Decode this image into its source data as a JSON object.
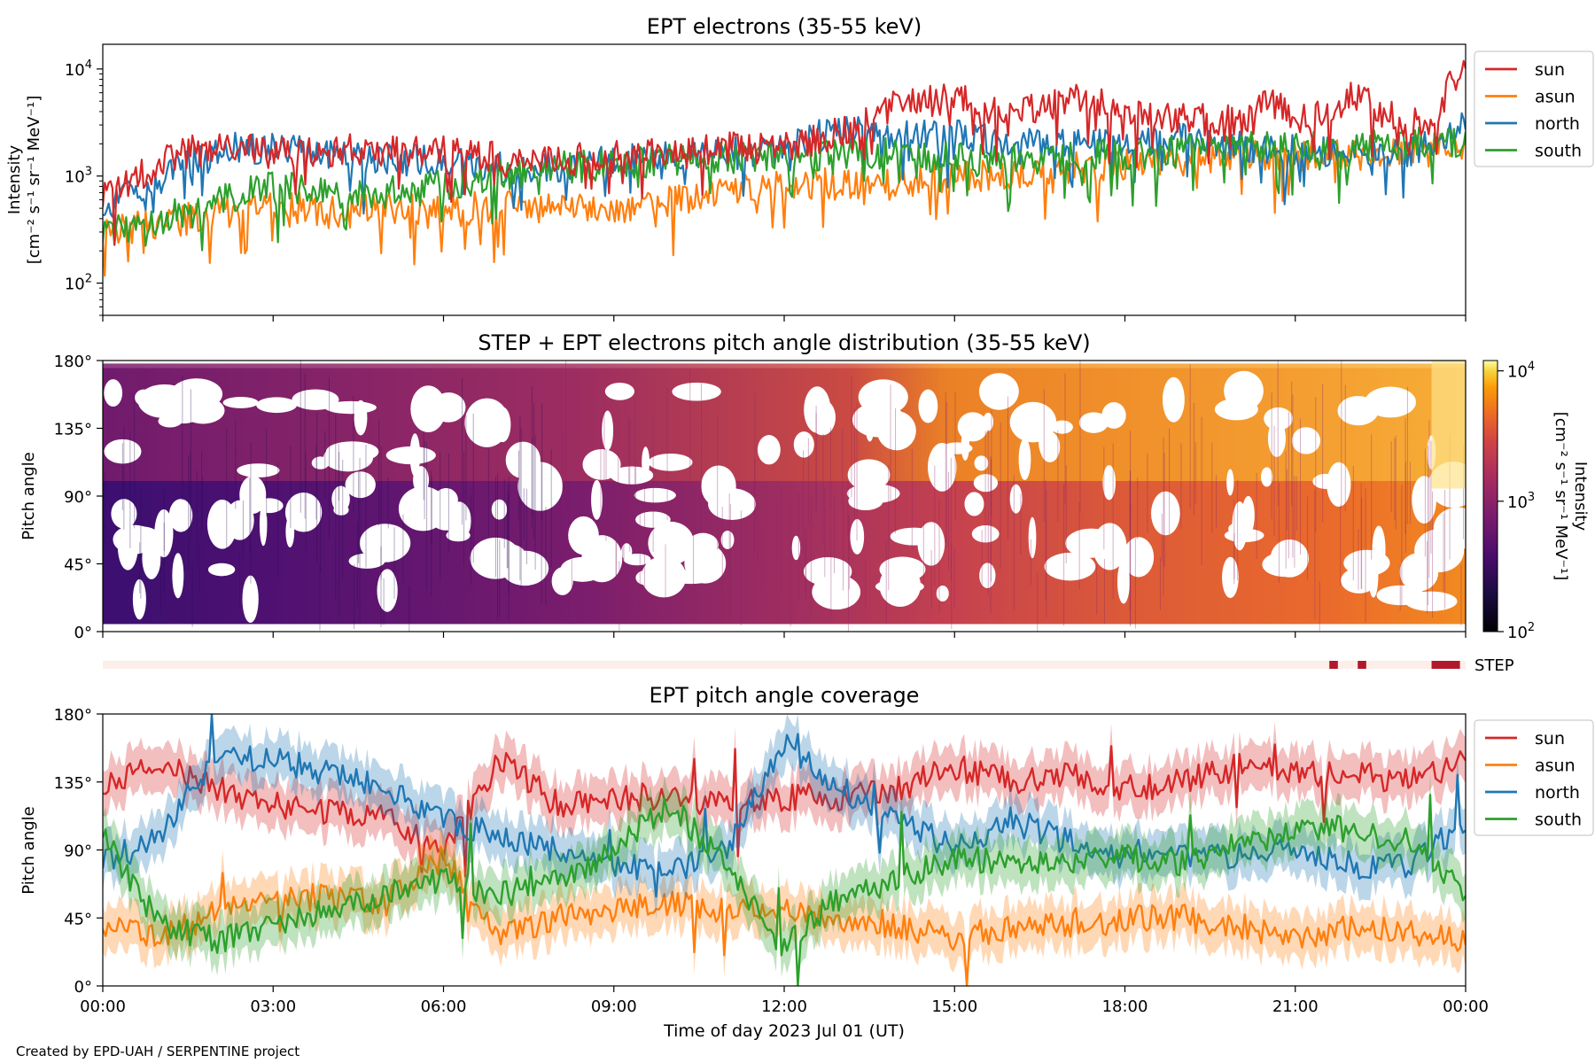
{
  "footer_text": "Created by EPD-UAH / SERPENTINE project",
  "chart_data": [
    {
      "type": "line",
      "title": "EPT electrons (35-55 keV)",
      "ylabel_line1": "Intensity",
      "ylabel_line2": "[cm⁻² s⁻¹ sr⁻¹ MeV⁻¹]",
      "yscale": "log",
      "ylim": [
        50,
        17000
      ],
      "yticks": [
        {
          "v": 100,
          "base": "10",
          "exp": "2"
        },
        {
          "v": 1000,
          "base": "10",
          "exp": "3"
        },
        {
          "v": 10000,
          "base": "10",
          "exp": "4"
        }
      ],
      "xlim_hours": [
        0,
        24
      ],
      "legend_position": "outside-right-top",
      "series": [
        {
          "name": "sun",
          "color": "#d62728",
          "x": [
            0,
            0.5,
            1,
            1.5,
            2,
            3,
            4,
            5,
            6,
            7,
            8,
            9,
            10,
            11,
            12,
            12.5,
            13,
            13.5,
            14,
            14.5,
            15,
            15.5,
            16,
            16.5,
            17,
            17.5,
            18,
            19,
            20,
            20.5,
            21,
            21.5,
            22,
            22.5,
            23,
            23.5,
            23.8,
            24
          ],
          "values": [
            600,
            900,
            1300,
            1700,
            1800,
            1800,
            1700,
            1800,
            1700,
            1500,
            1400,
            1500,
            1600,
            1800,
            1900,
            2100,
            2600,
            3500,
            4600,
            5000,
            5500,
            4000,
            3800,
            4500,
            5200,
            4800,
            4200,
            3500,
            3200,
            4800,
            3500,
            4200,
            6000,
            4000,
            3200,
            3000,
            8500,
            9500
          ]
        },
        {
          "name": "asun",
          "color": "#ff7f0e",
          "x": [
            0,
            1,
            2,
            3,
            4,
            5,
            6,
            7,
            8,
            9,
            10,
            11,
            12,
            13,
            14,
            15,
            16,
            17,
            18,
            19,
            20,
            21,
            22,
            23,
            24
          ],
          "values": [
            300,
            350,
            450,
            550,
            450,
            500,
            450,
            550,
            500,
            500,
            600,
            700,
            800,
            850,
            900,
            1000,
            1050,
            1200,
            1300,
            1400,
            1500,
            1550,
            1600,
            1700,
            1800
          ]
        },
        {
          "name": "north",
          "color": "#1f77b4",
          "x": [
            0,
            1,
            2,
            3,
            4,
            5,
            6,
            7,
            8,
            9,
            10,
            11,
            12,
            12.5,
            13,
            14,
            15,
            16,
            17,
            18,
            19,
            20,
            21,
            22,
            23,
            24
          ],
          "values": [
            500,
            900,
            1800,
            1800,
            1600,
            1500,
            1300,
            1200,
            1200,
            1400,
            1500,
            1600,
            1800,
            2300,
            2600,
            2500,
            2400,
            2000,
            2000,
            2100,
            2200,
            1900,
            1700,
            1800,
            1600,
            3000
          ]
        },
        {
          "name": "south",
          "color": "#2ca02c",
          "x": [
            0,
            1,
            2,
            3,
            4,
            5,
            6,
            7,
            8,
            9,
            10,
            11,
            12,
            13,
            14,
            15,
            16,
            17,
            18,
            19,
            20,
            21,
            22,
            23,
            24
          ],
          "values": [
            280,
            380,
            600,
            800,
            700,
            700,
            800,
            1000,
            1200,
            1300,
            1400,
            1500,
            1500,
            1600,
            1600,
            1500,
            1400,
            1500,
            1600,
            1700,
            1800,
            1900,
            1900,
            2000,
            2100
          ]
        }
      ]
    },
    {
      "type": "heatmap",
      "title": "STEP + EPT electrons pitch angle distribution (35-55 keV)",
      "ylabel": "Pitch angle",
      "ylim_deg": [
        0,
        180
      ],
      "ytick_labels": [
        "0°",
        "45°",
        "90°",
        "135°",
        "180°"
      ],
      "colorbar": {
        "label_line1": "Intensity",
        "label_line2": "[cm⁻² s⁻¹ sr⁻¹ MeV⁻¹]",
        "scale": "log",
        "range": [
          100,
          12000
        ],
        "colormap": "inferno",
        "ticks": [
          {
            "v": 100,
            "base": "10",
            "exp": "2"
          },
          {
            "v": 1000,
            "base": "10",
            "exp": "3"
          },
          {
            "v": 10000,
            "base": "10",
            "exp": "4"
          }
        ]
      },
      "coverage_band_deg": [
        0,
        180
      ],
      "step_indicator_label": "STEP",
      "step_active_hours": [
        [
          21.6,
          21.75
        ],
        [
          22.1,
          22.25
        ],
        [
          23.4,
          23.9
        ]
      ]
    },
    {
      "type": "line",
      "title": "EPT pitch angle coverage",
      "ylabel": "Pitch angle",
      "xlabel": "Time of day 2023 Jul 01 (UT)",
      "ylim_deg": [
        0,
        180
      ],
      "ytick_labels": [
        "0°",
        "45°",
        "90°",
        "135°",
        "180°"
      ],
      "xtick_labels": [
        "00:00",
        "03:00",
        "06:00",
        "09:00",
        "12:00",
        "15:00",
        "18:00",
        "21:00",
        "00:00"
      ],
      "legend_position": "outside-right-top",
      "shaded_band_deg": 15,
      "series": [
        {
          "name": "sun",
          "color": "#d62728",
          "x": [
            0,
            1,
            2,
            3,
            4,
            5,
            6,
            7,
            8,
            9,
            10,
            11,
            12,
            13,
            14,
            15,
            16,
            17,
            18,
            19,
            20,
            21,
            22,
            23,
            24
          ],
          "values": [
            130,
            150,
            130,
            120,
            115,
            110,
            90,
            150,
            120,
            125,
            125,
            120,
            125,
            125,
            130,
            145,
            135,
            140,
            130,
            135,
            145,
            140,
            140,
            135,
            150
          ]
        },
        {
          "name": "asun",
          "color": "#ff7f0e",
          "x": [
            0,
            1,
            2,
            3,
            4,
            5,
            6,
            7,
            8,
            9,
            10,
            11,
            12,
            13,
            14,
            15,
            16,
            17,
            18,
            19,
            20,
            21,
            22,
            23,
            24
          ],
          "values": [
            40,
            30,
            50,
            55,
            60,
            55,
            85,
            35,
            45,
            50,
            55,
            50,
            50,
            45,
            40,
            30,
            40,
            40,
            45,
            45,
            40,
            30,
            40,
            35,
            30
          ]
        },
        {
          "name": "north",
          "color": "#1f77b4",
          "x": [
            0,
            1,
            2,
            3,
            4,
            5,
            6,
            7,
            8,
            9,
            10,
            11,
            12,
            13,
            14,
            15,
            16,
            17,
            18,
            19,
            20,
            21,
            22,
            23,
            24
          ],
          "values": [
            80,
            100,
            150,
            150,
            140,
            130,
            110,
            100,
            90,
            80,
            75,
            90,
            160,
            130,
            110,
            90,
            110,
            95,
            90,
            85,
            85,
            90,
            80,
            80,
            110
          ]
        },
        {
          "name": "south",
          "color": "#2ca02c",
          "x": [
            0,
            1,
            2,
            3,
            4,
            5,
            6,
            7,
            8,
            9,
            10,
            11,
            12,
            13,
            14,
            15,
            16,
            17,
            18,
            19,
            20,
            21,
            22,
            23,
            24
          ],
          "values": [
            100,
            40,
            30,
            40,
            50,
            60,
            70,
            60,
            70,
            90,
            120,
            80,
            25,
            60,
            70,
            85,
            80,
            80,
            85,
            80,
            95,
            100,
            105,
            95,
            60
          ]
        }
      ]
    }
  ]
}
